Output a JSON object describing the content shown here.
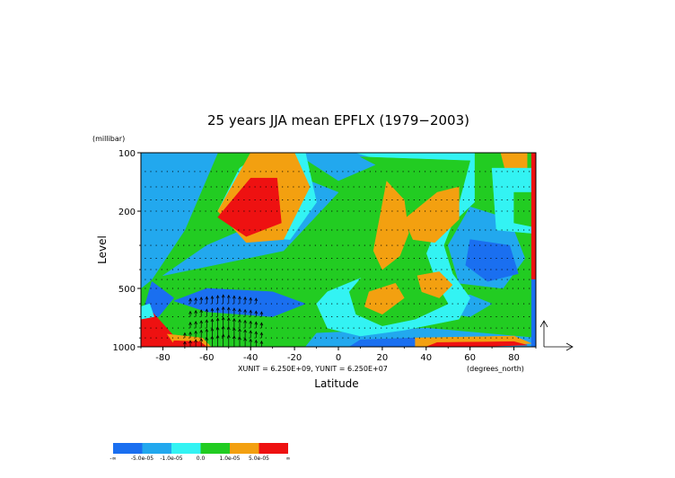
{
  "chart_data": {
    "type": "heatmap",
    "title": "25 years JJA mean EPFLX  (1979−2003)",
    "xlabel": "Latitude",
    "ylabel": "Level",
    "y_units": "(millibar)",
    "x_units": "(degrees_north)",
    "unit_note": "XUNIT = 6.250E+09, YUNIT = 6.250E+07",
    "xlim": [
      -90,
      90
    ],
    "ylim": [
      1000,
      100
    ],
    "y_scale": "log",
    "x_ticks": [
      "-80",
      "-60",
      "-40",
      "-20",
      "0",
      "20",
      "40",
      "60",
      "80"
    ],
    "x_tick_values": [
      -80,
      -60,
      -40,
      -20,
      0,
      20,
      40,
      60,
      80
    ],
    "y_ticks": [
      "100",
      "200",
      "500",
      "1000"
    ],
    "y_tick_values": [
      100,
      200,
      500,
      1000
    ],
    "colorbar": {
      "labels": [
        "-∞",
        "-5.0e-05",
        "-1.0e-05",
        "0.0",
        "1.0e-05",
        "5.0e-05",
        "∞"
      ],
      "colors": [
        "#1a6ff0",
        "#22a8ee",
        "#33f3f3",
        "#22cc22",
        "#f3a010",
        "#ee1111"
      ]
    },
    "regions": [
      {
        "band": 3,
        "points": [
          [
            -90,
            100
          ],
          [
            -20,
            100
          ],
          [
            0,
            140
          ],
          [
            30,
            100
          ],
          [
            90,
            100
          ],
          [
            90,
            1000
          ],
          [
            -90,
            1000
          ]
        ]
      },
      {
        "band": 1,
        "points": [
          [
            -90,
            100
          ],
          [
            -55,
            100
          ],
          [
            -70,
            250
          ],
          [
            -85,
            450
          ],
          [
            -90,
            500
          ]
        ]
      },
      {
        "band": 1,
        "points": [
          [
            -20,
            130
          ],
          [
            0,
            160
          ],
          [
            -25,
            320
          ],
          [
            -80,
            430
          ],
          [
            -60,
            300
          ],
          [
            -40,
            240
          ]
        ]
      },
      {
        "band": 1,
        "points": [
          [
            60,
            190
          ],
          [
            78,
            220
          ],
          [
            85,
            350
          ],
          [
            75,
            500
          ],
          [
            55,
            470
          ],
          [
            50,
            300
          ]
        ]
      },
      {
        "band": 1,
        "points": [
          [
            -10,
            850
          ],
          [
            40,
            800
          ],
          [
            90,
            900
          ],
          [
            90,
            1000
          ],
          [
            -15,
            1000
          ]
        ]
      },
      {
        "band": 1,
        "points": [
          [
            45,
            560
          ],
          [
            60,
            540
          ],
          [
            70,
            600
          ],
          [
            60,
            700
          ],
          [
            45,
            660
          ]
        ]
      },
      {
        "band": 0,
        "points": [
          [
            -60,
            500
          ],
          [
            -30,
            520
          ],
          [
            -15,
            600
          ],
          [
            -30,
            700
          ],
          [
            -60,
            660
          ],
          [
            -75,
            580
          ]
        ]
      },
      {
        "band": 0,
        "points": [
          [
            -85,
            460
          ],
          [
            -75,
            560
          ],
          [
            -82,
            700
          ],
          [
            -90,
            720
          ]
        ]
      },
      {
        "band": 0,
        "points": [
          [
            60,
            280
          ],
          [
            78,
            300
          ],
          [
            82,
            420
          ],
          [
            68,
            460
          ],
          [
            58,
            380
          ]
        ]
      },
      {
        "band": 0,
        "points": [
          [
            10,
            920
          ],
          [
            35,
            900
          ],
          [
            50,
            960
          ],
          [
            30,
            1000
          ],
          [
            5,
            1000
          ]
        ]
      },
      {
        "band": 2,
        "points": [
          [
            -35,
            100
          ],
          [
            -15,
            100
          ],
          [
            -10,
            180
          ],
          [
            -22,
            280
          ],
          [
            -40,
            270
          ],
          [
            -55,
            200
          ],
          [
            -45,
            120
          ]
        ]
      },
      {
        "band": 4,
        "points": [
          [
            -40,
            100
          ],
          [
            -20,
            100
          ],
          [
            -13,
            150
          ],
          [
            -25,
            280
          ],
          [
            -42,
            290
          ],
          [
            -55,
            200
          ]
        ]
      },
      {
        "band": 5,
        "points": [
          [
            -40,
            135
          ],
          [
            -28,
            135
          ],
          [
            -26,
            230
          ],
          [
            -42,
            270
          ],
          [
            -55,
            215
          ]
        ]
      },
      {
        "band": 2,
        "points": [
          [
            8,
            100
          ],
          [
            20,
            110
          ],
          [
            35,
            140
          ],
          [
            40,
            170
          ],
          [
            38,
            250
          ],
          [
            30,
            380
          ],
          [
            15,
            420
          ],
          [
            -5,
            520
          ],
          [
            -10,
            600
          ],
          [
            -5,
            800
          ],
          [
            10,
            880
          ],
          [
            30,
            820
          ],
          [
            55,
            720
          ],
          [
            60,
            560
          ],
          [
            52,
            420
          ],
          [
            48,
            300
          ],
          [
            52,
            230
          ],
          [
            62,
            180
          ],
          [
            62,
            100
          ]
        ]
      },
      {
        "band": 3,
        "points": [
          [
            10,
            105
          ],
          [
            20,
            120
          ],
          [
            30,
            150
          ],
          [
            32,
            230
          ],
          [
            25,
            350
          ],
          [
            12,
            420
          ],
          [
            5,
            520
          ],
          [
            8,
            680
          ],
          [
            20,
            780
          ],
          [
            35,
            720
          ],
          [
            50,
            600
          ],
          [
            45,
            480
          ],
          [
            40,
            330
          ],
          [
            45,
            240
          ],
          [
            55,
            180
          ],
          [
            60,
            110
          ]
        ]
      },
      {
        "band": 4,
        "points": [
          [
            22,
            140
          ],
          [
            30,
            175
          ],
          [
            32,
            260
          ],
          [
            28,
            340
          ],
          [
            20,
            400
          ],
          [
            16,
            320
          ]
        ]
      },
      {
        "band": 4,
        "points": [
          [
            30,
            220
          ],
          [
            45,
            160
          ],
          [
            55,
            150
          ],
          [
            55,
            220
          ],
          [
            44,
            290
          ],
          [
            34,
            280
          ]
        ]
      },
      {
        "band": 4,
        "points": [
          [
            14,
            520
          ],
          [
            26,
            470
          ],
          [
            30,
            560
          ],
          [
            20,
            680
          ],
          [
            12,
            620
          ]
        ]
      },
      {
        "band": 4,
        "points": [
          [
            36,
            430
          ],
          [
            46,
            410
          ],
          [
            52,
            480
          ],
          [
            46,
            560
          ],
          [
            38,
            520
          ]
        ]
      },
      {
        "band": 4,
        "points": [
          [
            74,
            100
          ],
          [
            86,
            100
          ],
          [
            86,
            140
          ],
          [
            78,
            150
          ]
        ]
      },
      {
        "band": 2,
        "points": [
          [
            70,
            120
          ],
          [
            88,
            120
          ],
          [
            88,
            260
          ],
          [
            72,
            250
          ]
        ]
      },
      {
        "band": 3,
        "points": [
          [
            80,
            160
          ],
          [
            88,
            160
          ],
          [
            88,
            240
          ],
          [
            80,
            230
          ]
        ]
      },
      {
        "band": 4,
        "points": [
          [
            35,
            900
          ],
          [
            80,
            880
          ],
          [
            88,
            960
          ],
          [
            60,
            1000
          ],
          [
            35,
            1000
          ]
        ]
      },
      {
        "band": 5,
        "points": [
          [
            45,
            950
          ],
          [
            80,
            940
          ],
          [
            86,
            980
          ],
          [
            60,
            1000
          ],
          [
            40,
            1000
          ]
        ]
      },
      {
        "band": 5,
        "points": [
          [
            88,
            100
          ],
          [
            90,
            100
          ],
          [
            90,
            450
          ],
          [
            88,
            450
          ]
        ]
      },
      {
        "band": 0,
        "points": [
          [
            88,
            450
          ],
          [
            90,
            450
          ],
          [
            90,
            1000
          ],
          [
            88,
            1000
          ]
        ]
      },
      {
        "band": 5,
        "points": [
          [
            -90,
            640
          ],
          [
            -86,
            640
          ],
          [
            -75,
            880
          ],
          [
            -60,
            960
          ],
          [
            -60,
            1000
          ],
          [
            -90,
            1000
          ]
        ]
      },
      {
        "band": 4,
        "points": [
          [
            -78,
            860
          ],
          [
            -62,
            900
          ],
          [
            -58,
            1000
          ],
          [
            -74,
            1000
          ]
        ]
      },
      {
        "band": 5,
        "points": [
          [
            -75,
            930
          ],
          [
            -63,
            940
          ],
          [
            -60,
            1000
          ],
          [
            -76,
            1000
          ]
        ]
      },
      {
        "band": 2,
        "points": [
          [
            -90,
            620
          ],
          [
            -86,
            600
          ],
          [
            -84,
            700
          ],
          [
            -90,
            720
          ]
        ]
      }
    ]
  },
  "colorbar_labels": [
    "-∞",
    "-5.0e-05",
    "-1.0e-05",
    "0.0",
    "1.0e-05",
    "5.0e-05",
    "∞"
  ]
}
